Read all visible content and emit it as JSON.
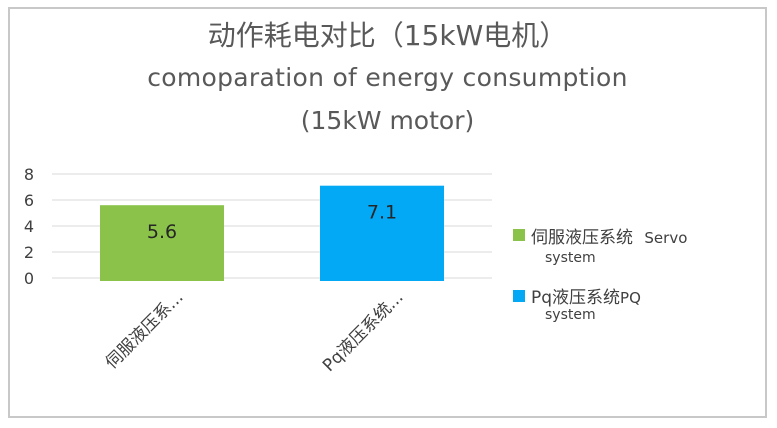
{
  "chart_data": {
    "type": "bar",
    "title": "动作耗电对比（15kW电机）",
    "subtitle_line1": "comoparation of energy consumption",
    "subtitle_line2": "(15kW motor)",
    "categories": [
      "伺服液压系...",
      "Pq液压系统..."
    ],
    "series": [
      {
        "values": [
          5.6,
          7.1
        ],
        "colors": [
          "#8bc34a",
          "#03a9f4"
        ]
      }
    ],
    "data_labels": [
      "5.6",
      "7.1"
    ],
    "yticks": [
      "0",
      "2",
      "4",
      "6",
      "8"
    ],
    "ylim": [
      0,
      8
    ],
    "grid": true,
    "legend_position": "right",
    "legend": [
      {
        "line1": "伺服液压系统",
        "line1_extra": "Servo",
        "line2": "system",
        "color": "#8bc34a"
      },
      {
        "line1": "Pq液压系统",
        "line1_extra": "PQ",
        "line2": "system",
        "color": "#03a9f4"
      }
    ]
  }
}
